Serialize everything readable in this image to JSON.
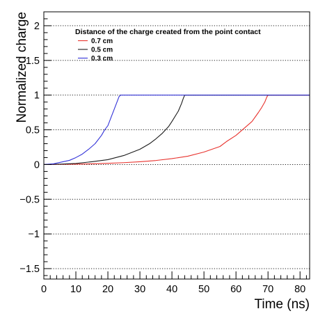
{
  "chart_data": {
    "type": "line",
    "title": "",
    "xlabel": "Time (ns)",
    "ylabel": "Normalized charge",
    "xlim": [
      0,
      83
    ],
    "ylim": [
      -1.65,
      2.2
    ],
    "x_ticks": [
      0,
      10,
      20,
      30,
      40,
      50,
      60,
      70,
      80
    ],
    "x_tick_labels": [
      "0",
      "10",
      "20",
      "30",
      "40",
      "50",
      "60",
      "70",
      "80"
    ],
    "y_ticks": [
      -1.5,
      -1,
      -0.5,
      0,
      0.5,
      1,
      1.5,
      2
    ],
    "y_tick_labels": [
      "−1.5",
      "−1",
      "−0.5",
      "0",
      "0.5",
      "1",
      "1.5",
      "2"
    ],
    "grid": "horizontal dotted lines at y tick values",
    "legend": {
      "title": "Distance of the charge created from the point contact",
      "placement": "top-left"
    },
    "series": [
      {
        "name": "0.7 cm",
        "color": "#e8322d",
        "x": [
          0,
          5,
          10,
          15,
          20,
          25,
          30,
          35,
          40,
          45,
          50,
          55,
          57,
          60,
          62,
          65,
          67,
          68,
          69,
          69.6,
          70,
          72,
          75,
          83
        ],
        "y": [
          0,
          0.002,
          0.005,
          0.01,
          0.017,
          0.027,
          0.04,
          0.058,
          0.085,
          0.12,
          0.18,
          0.26,
          0.33,
          0.42,
          0.5,
          0.62,
          0.75,
          0.82,
          0.9,
          0.97,
          1.0,
          1.0,
          1.0,
          1.0
        ]
      },
      {
        "name": "0.5 cm",
        "color": "#1a1a1a",
        "x": [
          0,
          5,
          10,
          15,
          20,
          25,
          30,
          33,
          35,
          37,
          39,
          40,
          42,
          43,
          43.6,
          44,
          50,
          83
        ],
        "y": [
          0,
          0.005,
          0.015,
          0.04,
          0.07,
          0.13,
          0.22,
          0.3,
          0.37,
          0.45,
          0.55,
          0.62,
          0.77,
          0.88,
          0.96,
          1.0,
          1.0,
          1.0
        ]
      },
      {
        "name": "0.3 cm",
        "color": "#3232d8",
        "x": [
          0,
          3,
          5,
          8,
          10,
          12,
          14,
          16,
          18,
          19,
          20,
          21,
          22,
          23,
          23.5,
          24,
          30,
          83
        ],
        "y": [
          0,
          0.01,
          0.03,
          0.06,
          0.1,
          0.15,
          0.22,
          0.3,
          0.42,
          0.5,
          0.56,
          0.68,
          0.8,
          0.92,
          0.98,
          1.0,
          1.0,
          1.0
        ]
      }
    ]
  }
}
